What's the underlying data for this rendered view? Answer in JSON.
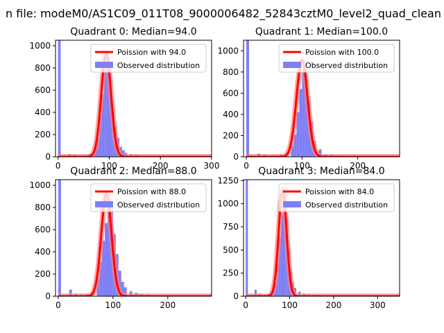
{
  "figure": {
    "suptitle": "n file: modeM0/AS1C09_011T08_9000006482_52843cztM0_level2_quad_clean"
  },
  "colors": {
    "curve": "#ff0000",
    "curve_glow": "#ff8080",
    "hist": "#7f7ff5",
    "axis": "#000000"
  },
  "chart_data": [
    {
      "type": "bar",
      "title": "Quadrant 0: Median=94.0",
      "median": 94.0,
      "xlim": [
        -5,
        300
      ],
      "ylim": [
        0,
        1050
      ],
      "xticks": [
        0,
        100,
        200,
        300
      ],
      "yticks": [
        0,
        200,
        400,
        600,
        800,
        1000
      ],
      "legend": [
        "Poission with 94.0",
        "Observed distribution"
      ],
      "legend_position": "top-right",
      "bars": [
        [
          0,
          1050
        ],
        [
          20,
          25
        ],
        [
          30,
          20
        ],
        [
          40,
          10
        ],
        [
          50,
          15
        ],
        [
          60,
          25
        ],
        [
          70,
          90
        ],
        [
          75,
          160
        ],
        [
          80,
          380
        ],
        [
          85,
          560
        ],
        [
          90,
          780
        ],
        [
          95,
          840
        ],
        [
          100,
          620
        ],
        [
          105,
          420
        ],
        [
          110,
          270
        ],
        [
          115,
          170
        ],
        [
          120,
          90
        ],
        [
          125,
          60
        ],
        [
          130,
          35
        ],
        [
          140,
          25
        ],
        [
          150,
          18
        ],
        [
          160,
          10
        ],
        [
          170,
          8
        ],
        [
          180,
          6
        ],
        [
          190,
          5
        ],
        [
          200,
          4
        ],
        [
          220,
          3
        ],
        [
          260,
          2
        ],
        [
          290,
          1
        ]
      ],
      "bar_width": 5
    },
    {
      "type": "bar",
      "title": "Quadrant 1: Median=100.0",
      "median": 100.0,
      "xlim": [
        -5,
        275
      ],
      "ylim": [
        0,
        1100
      ],
      "xticks": [
        0,
        100,
        200
      ],
      "yticks": [
        0,
        200,
        400,
        600,
        800,
        1000
      ],
      "legend": [
        "Poission with 100.0",
        "Observed distribution"
      ],
      "legend_position": "top-right",
      "bars": [
        [
          0,
          1100
        ],
        [
          20,
          30
        ],
        [
          30,
          20
        ],
        [
          40,
          10
        ],
        [
          50,
          15
        ],
        [
          60,
          25
        ],
        [
          70,
          30
        ],
        [
          80,
          100
        ],
        [
          85,
          210
        ],
        [
          90,
          420
        ],
        [
          95,
          640
        ],
        [
          100,
          830
        ],
        [
          105,
          780
        ],
        [
          110,
          520
        ],
        [
          115,
          330
        ],
        [
          120,
          150
        ],
        [
          130,
          70
        ],
        [
          140,
          25
        ],
        [
          150,
          20
        ],
        [
          160,
          12
        ],
        [
          170,
          8
        ],
        [
          180,
          6
        ],
        [
          200,
          4
        ],
        [
          220,
          3
        ],
        [
          260,
          2
        ]
      ],
      "bar_width": 5
    },
    {
      "type": "bar",
      "title": "Quadrant 2: Median=88.0",
      "median": 88.0,
      "xlim": [
        -5,
        280
      ],
      "ylim": [
        0,
        1050
      ],
      "xticks": [
        0,
        100,
        200
      ],
      "yticks": [
        0,
        200,
        400,
        600,
        800,
        1000
      ],
      "legend": [
        "Poission with 88.0",
        "Observed distribution"
      ],
      "legend_position": "top-right",
      "bars": [
        [
          0,
          1050
        ],
        [
          20,
          60
        ],
        [
          30,
          25
        ],
        [
          40,
          15
        ],
        [
          50,
          20
        ],
        [
          60,
          40
        ],
        [
          70,
          150
        ],
        [
          75,
          310
        ],
        [
          80,
          500
        ],
        [
          85,
          660
        ],
        [
          90,
          840
        ],
        [
          95,
          820
        ],
        [
          100,
          560
        ],
        [
          105,
          380
        ],
        [
          110,
          230
        ],
        [
          115,
          130
        ],
        [
          120,
          80
        ],
        [
          130,
          45
        ],
        [
          140,
          30
        ],
        [
          150,
          20
        ],
        [
          160,
          15
        ],
        [
          170,
          10
        ],
        [
          180,
          8
        ],
        [
          200,
          5
        ],
        [
          220,
          3
        ],
        [
          260,
          2
        ]
      ],
      "bar_width": 5
    },
    {
      "type": "bar",
      "title": "Quadrant 3: Median=84.0",
      "median": 84.0,
      "xlim": [
        -5,
        350
      ],
      "ylim": [
        0,
        1260
      ],
      "xticks": [
        0,
        100,
        200,
        300
      ],
      "yticks": [
        0,
        250,
        500,
        750,
        1000,
        1250
      ],
      "legend": [
        "Poission with 84.0",
        "Observed distribution"
      ],
      "legend_position": "top-right",
      "bars": [
        [
          0,
          1260
        ],
        [
          20,
          70
        ],
        [
          30,
          30
        ],
        [
          40,
          15
        ],
        [
          50,
          25
        ],
        [
          60,
          50
        ],
        [
          65,
          140
        ],
        [
          70,
          360
        ],
        [
          75,
          640
        ],
        [
          80,
          900
        ],
        [
          85,
          1040
        ],
        [
          90,
          840
        ],
        [
          95,
          500
        ],
        [
          100,
          300
        ],
        [
          105,
          150
        ],
        [
          110,
          90
        ],
        [
          120,
          50
        ],
        [
          130,
          30
        ],
        [
          140,
          20
        ],
        [
          150,
          15
        ],
        [
          160,
          10
        ],
        [
          180,
          6
        ],
        [
          200,
          4
        ],
        [
          250,
          2
        ]
      ],
      "bar_width": 5
    }
  ]
}
